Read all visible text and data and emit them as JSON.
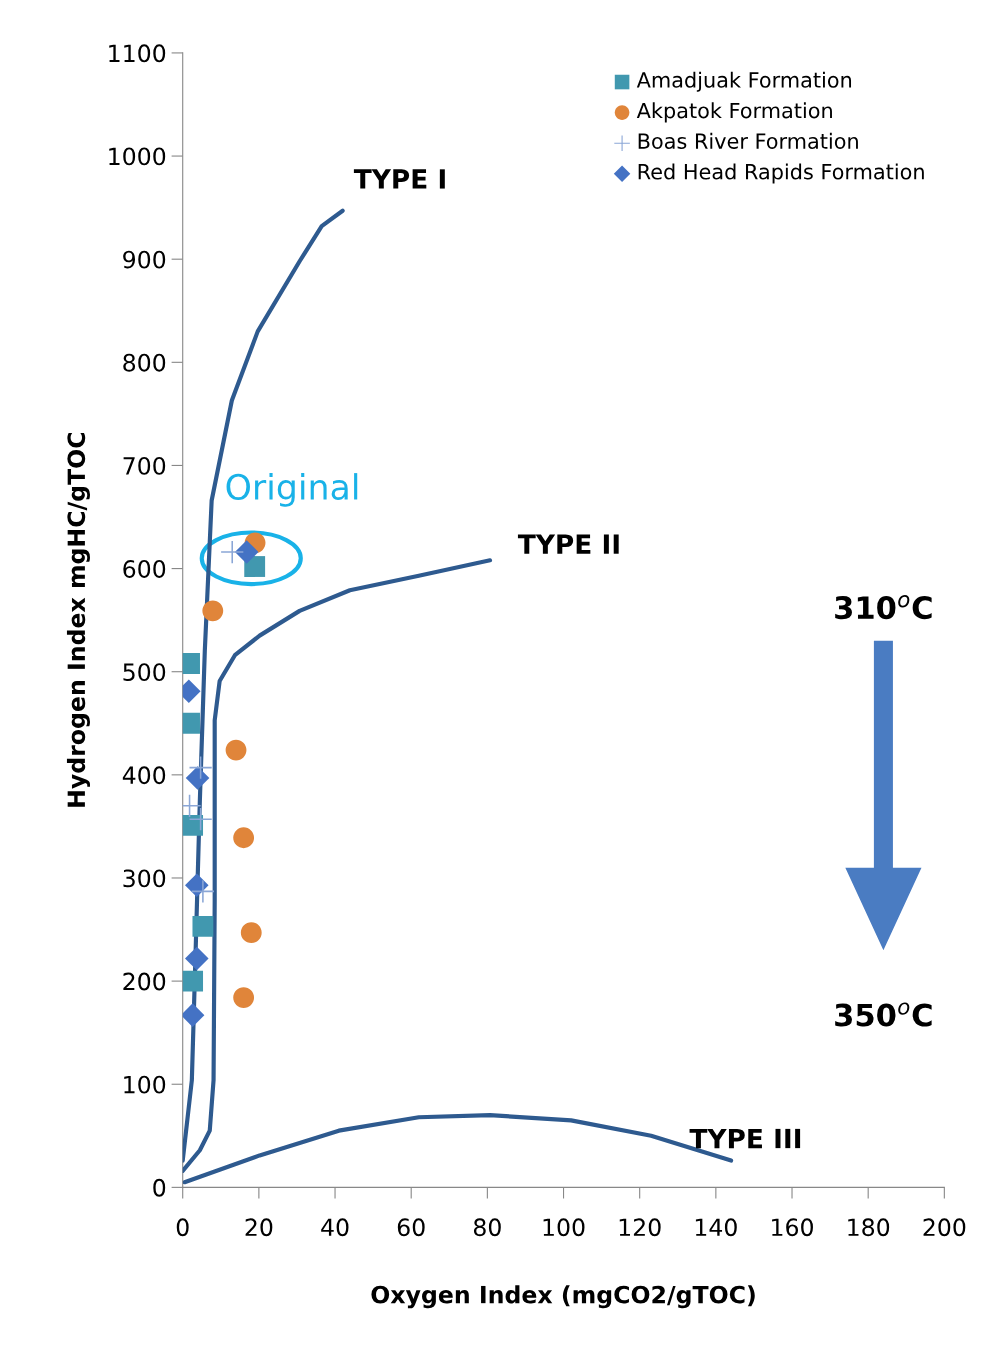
{
  "chart_data": {
    "type": "scatter",
    "xlabel": "Oxygen Index (mgCO2/gTOC)",
    "ylabel": "Hydrogen Index mgHC/gTOC",
    "xlim": [
      0,
      200
    ],
    "ylim": [
      0,
      1100
    ],
    "xticks": [
      0,
      20,
      40,
      60,
      80,
      100,
      120,
      140,
      160,
      180,
      200
    ],
    "yticks": [
      0,
      100,
      200,
      300,
      400,
      500,
      600,
      700,
      800,
      900,
      1000,
      1100
    ],
    "grid": false,
    "legend": "top right",
    "series": [
      {
        "name": "Amadjuak Formation",
        "marker": "square",
        "color": "#4198af",
        "x": [
          18.9,
          1.8,
          1.8,
          2.6,
          5.3,
          2.6
        ],
        "values": [
          602,
          508,
          450,
          351,
          253,
          200
        ]
      },
      {
        "name": "Akpatok Formation",
        "marker": "circle",
        "color": "#e0853a",
        "x": [
          19,
          7.9,
          14,
          16,
          18,
          16
        ],
        "values": [
          625,
          559,
          424,
          339,
          247,
          184
        ]
      },
      {
        "name": "Boas River Formation",
        "marker": "cross",
        "color": "#8aa6d6",
        "x": [
          13,
          4.7,
          1.8,
          4.7,
          5.3
        ],
        "values": [
          616,
          407,
          370,
          357,
          287
        ]
      },
      {
        "name": "Red Head Rapids Formation",
        "marker": "diamond",
        "color": "#4472c4",
        "x": [
          16.8,
          1.6,
          3.9,
          3.7,
          3.7,
          2.6
        ],
        "values": [
          616,
          481,
          397,
          293,
          222,
          167
        ]
      },
      {
        "type": "line",
        "color": "#2e5a8f",
        "x": [
          0,
          2.4,
          3.4,
          4.5,
          5.8,
          7.6,
          12.9,
          19.7,
          30.7,
          36.5,
          42
        ],
        "values": [
          26,
          104,
          230,
          375,
          520,
          666,
          763,
          830,
          898,
          932,
          947
        ]
      },
      {
        "type": "line",
        "color": "#2e5a8f",
        "x": [
          0,
          4.5,
          7.1,
          8.1,
          8.4,
          8.4,
          9.7,
          13.7,
          20.2,
          30.7,
          43.9,
          62,
          80.7
        ],
        "values": [
          16,
          36,
          55,
          104,
          278,
          453,
          491,
          516,
          535,
          559,
          579,
          593,
          608
        ]
      },
      {
        "type": "line",
        "color": "#2e5a8f",
        "x": [
          0.5,
          20.2,
          41,
          62,
          80.7,
          102,
          123,
          144
        ],
        "values": [
          5,
          31,
          55,
          68,
          70,
          65,
          50,
          26
        ]
      }
    ],
    "annotations": [
      {
        "text": "TYPE I",
        "x": 42,
        "y": 947
      },
      {
        "text": "TYPE II",
        "x": 80.7,
        "y": 608
      },
      {
        "text": "TYPE III",
        "x": 144,
        "y": 26
      },
      {
        "text": "Original",
        "x": 19,
        "y": 615
      },
      "310$^{o}$C",
      "350$^{o}$C"
    ]
  }
}
